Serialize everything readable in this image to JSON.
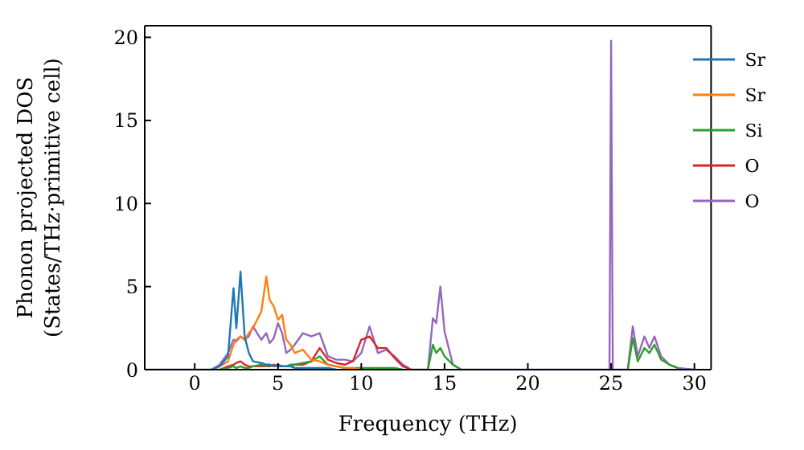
{
  "chart_data": {
    "type": "line",
    "xlabel": "Frequency (THz)",
    "ylabel": "Phonon projected DOS\n(States/THz·primitive cell)",
    "xlim": [
      -3,
      31
    ],
    "ylim": [
      0,
      20.7
    ],
    "xticks": [
      0,
      5,
      10,
      15,
      20,
      25,
      30
    ],
    "yticks": [
      0,
      5,
      10,
      15,
      20
    ],
    "legend": "top right",
    "x": [
      -3,
      1,
      1.5,
      2,
      2.33,
      2.5,
      2.75,
      3,
      3.25,
      3.5,
      4,
      4.3,
      4.5,
      4.75,
      5,
      5.25,
      5.5,
      5.75,
      6,
      6.5,
      7,
      7.5,
      8,
      8.5,
      9,
      9.5,
      10,
      10.5,
      11,
      11.5,
      12,
      12.5,
      13,
      14,
      14.3,
      14.5,
      14.75,
      15,
      15.5,
      16,
      24.7,
      24.9,
      25,
      25.1,
      25.3,
      26,
      26.3,
      26.6,
      27,
      27.3,
      27.6,
      28,
      28.5,
      29,
      30
    ],
    "series": [
      {
        "name": "Sr",
        "color": "#1f77b4",
        "values": [
          null,
          0,
          0.2,
          0.8,
          4.9,
          2.5,
          5.9,
          2,
          1,
          0.5,
          0.4,
          0.3,
          0.3,
          0.2,
          0.3,
          0.2,
          0.2,
          0.2,
          0.1,
          0.1,
          0.1,
          0.1,
          0.1,
          0,
          null,
          null,
          null,
          null,
          null,
          null,
          null,
          null,
          null,
          null,
          null,
          null,
          null,
          null,
          null,
          null,
          null,
          null,
          null,
          null,
          null,
          null,
          null,
          null,
          null,
          null,
          null,
          null,
          null,
          null,
          null
        ]
      },
      {
        "name": "Sr",
        "color": "#ff7f0e",
        "values": [
          null,
          0,
          0.2,
          0.5,
          1.5,
          1.8,
          2,
          1.8,
          2.2,
          2.5,
          3.5,
          5.6,
          4.2,
          3.8,
          3,
          3.3,
          1.8,
          1.5,
          1,
          1.2,
          0.6,
          0.5,
          0.3,
          0.2,
          0.1,
          0.1,
          0,
          null,
          null,
          null,
          null,
          null,
          null,
          null,
          null,
          null,
          null,
          null,
          null,
          null,
          null,
          null,
          null,
          null,
          null,
          null,
          null,
          null,
          null,
          null,
          null,
          null,
          null,
          null,
          null
        ]
      },
      {
        "name": "Si",
        "color": "#2ca02c",
        "values": [
          null,
          null,
          0,
          0.1,
          0.2,
          0.1,
          0.2,
          0.1,
          0.1,
          0.2,
          0.3,
          0.2,
          0.3,
          0.2,
          0.3,
          0.2,
          0.2,
          0.3,
          0.3,
          0.4,
          0.5,
          0.8,
          0.3,
          0.2,
          0.1,
          0.1,
          0.1,
          0.1,
          0.1,
          0.1,
          0.1,
          0,
          null,
          0,
          1.5,
          1.0,
          1.3,
          0.8,
          0.3,
          0,
          null,
          null,
          null,
          null,
          null,
          0,
          1.9,
          0.5,
          1.3,
          1,
          1.5,
          0.6,
          0.3,
          0.1,
          null
        ]
      },
      {
        "name": "O",
        "color": "#d62728",
        "values": [
          null,
          null,
          0,
          0.2,
          0.3,
          0.4,
          0.5,
          0.3,
          0.2,
          0.2,
          0.2,
          0.2,
          0.2,
          0.3,
          0.2,
          0.2,
          0.2,
          0.2,
          0.3,
          0.3,
          0.5,
          1.3,
          0.6,
          0.4,
          0.3,
          0.5,
          1.8,
          2,
          1.3,
          1.3,
          0.7,
          0.2,
          0,
          null,
          null,
          null,
          null,
          null,
          null,
          null,
          null,
          null,
          null,
          null,
          null,
          null,
          null,
          null,
          null,
          null,
          null,
          null,
          null,
          null,
          null
        ]
      },
      {
        "name": "O",
        "color": "#9467bd",
        "values": [
          0,
          0,
          0.3,
          1,
          1.8,
          1.7,
          2,
          1.8,
          2,
          2.6,
          1.8,
          2.2,
          1.6,
          1.9,
          2.8,
          2.2,
          1,
          1.2,
          1.5,
          2.2,
          2,
          2.2,
          0.8,
          0.6,
          0.6,
          0.5,
          1,
          2.6,
          1,
          1.2,
          0.8,
          0.3,
          0,
          0,
          3.1,
          2.8,
          5,
          2.3,
          0.3,
          0,
          0,
          0,
          19.8,
          0,
          0,
          0,
          2.6,
          0.8,
          2,
          1.3,
          2,
          0.8,
          0.3,
          0.1,
          0
        ]
      }
    ]
  }
}
